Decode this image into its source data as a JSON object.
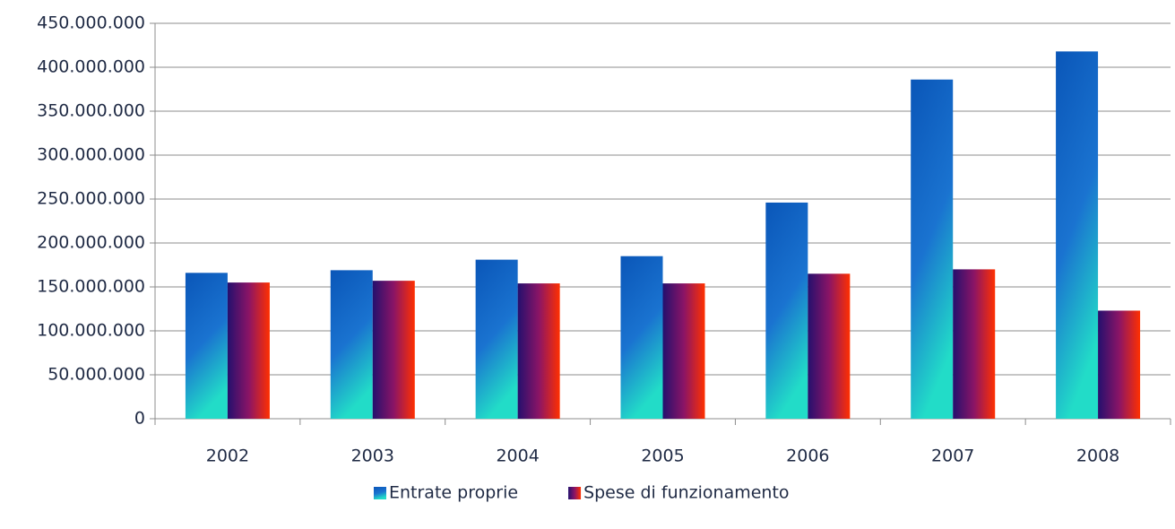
{
  "chart_data": {
    "type": "bar",
    "categories": [
      "2002",
      "2003",
      "2004",
      "2005",
      "2006",
      "2007",
      "2008"
    ],
    "series": [
      {
        "name": "Entrate proprie",
        "color": "#1a73d0",
        "values": [
          166000000,
          169000000,
          181000000,
          185000000,
          246000000,
          386000000,
          418000000
        ]
      },
      {
        "name": "Spese di funzionamento",
        "color": "#8a1466",
        "values": [
          155000000,
          157000000,
          154000000,
          154000000,
          165000000,
          170000000,
          123000000
        ]
      }
    ],
    "ylim": [
      0,
      450000000
    ],
    "yticks": [
      0,
      {
        "value": 50000000,
        "label": "50.000.000"
      },
      {
        "value": 100000000,
        "label": "100.000.000"
      },
      {
        "value": 150000000,
        "label": "150.000.000"
      },
      {
        "value": 200000000,
        "label": "200.000.000"
      },
      {
        "value": 250000000,
        "label": "250.000.000"
      },
      {
        "value": 300000000,
        "label": "300.000.000"
      },
      {
        "value": 350000000,
        "label": "350.000.000"
      },
      {
        "value": 400000000,
        "label": "400.000.000"
      },
      {
        "value": 450000000,
        "label": "450.000.000"
      }
    ],
    "grid": true,
    "legend": "bottom"
  }
}
